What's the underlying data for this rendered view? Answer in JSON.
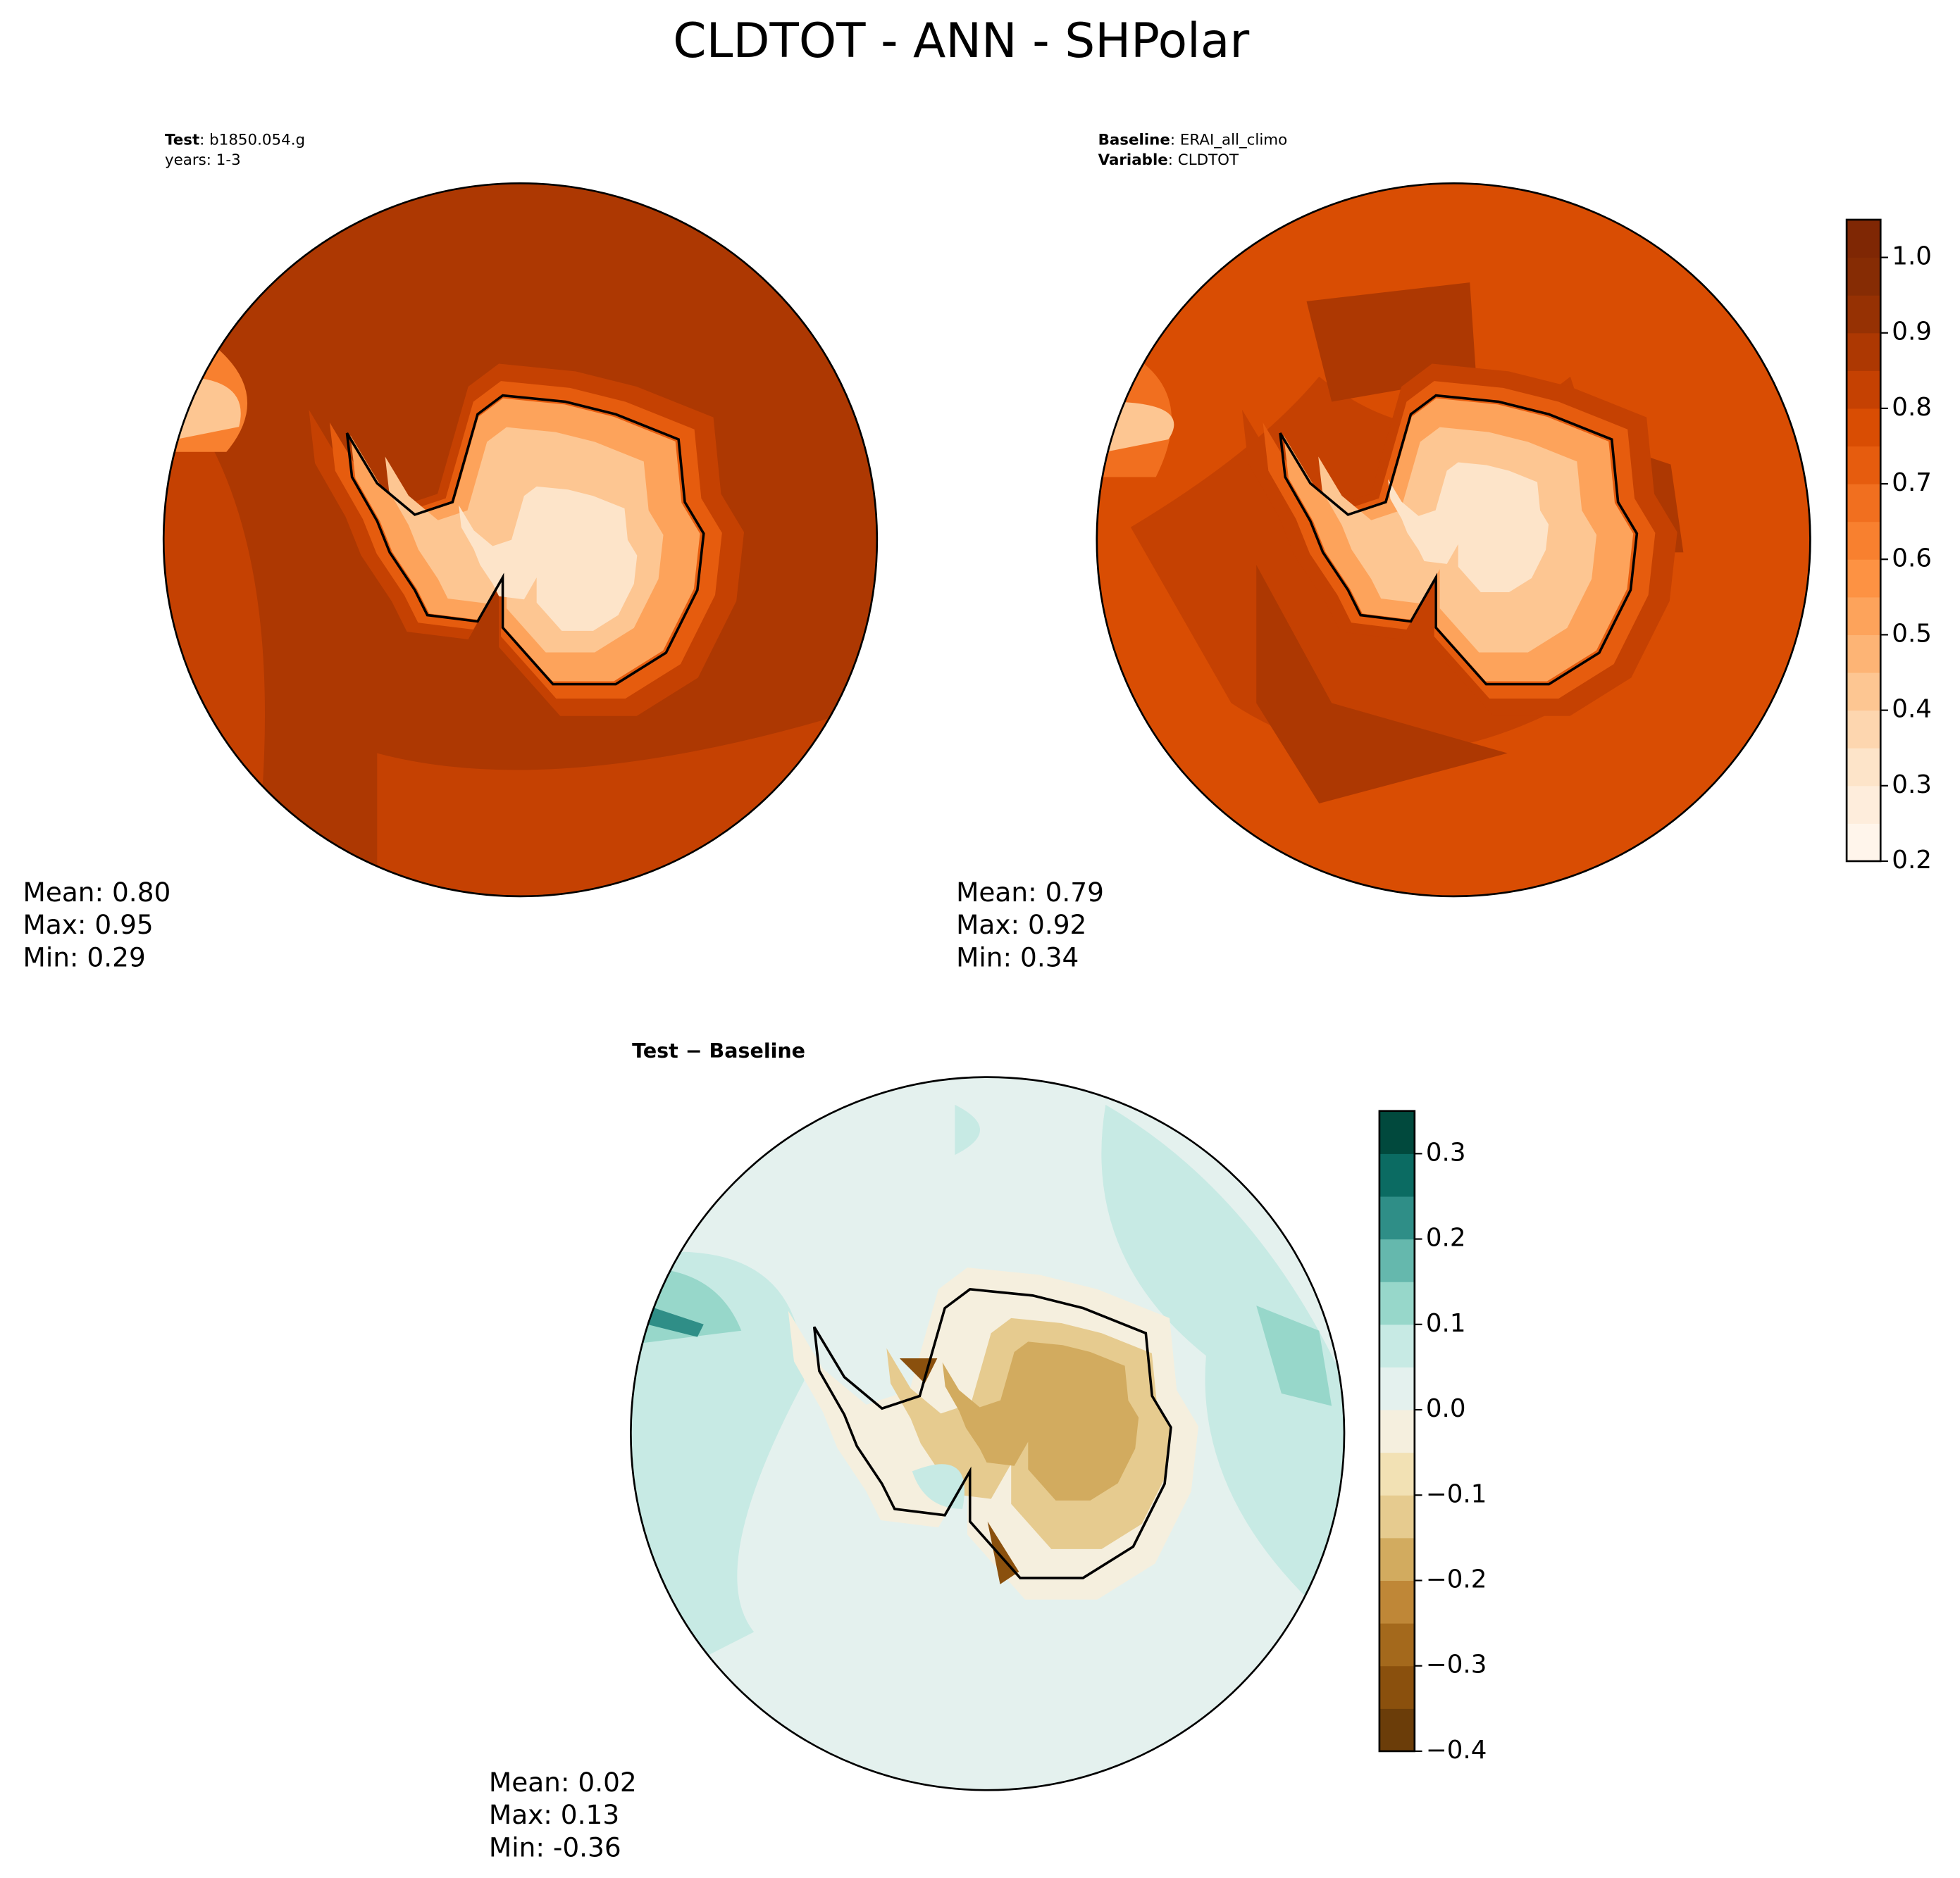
{
  "title": "CLDTOT - ANN - SHPolar",
  "test": {
    "label": "Test",
    "text": ": b1850.054.g",
    "years": "years: 1-3",
    "stats": [
      "Mean:  0.80",
      "Max:  0.95",
      "Min:  0.29"
    ]
  },
  "baseline": {
    "label": "Baseline",
    "text": ": ERAI_all_climo",
    "variable_label": "Variable",
    "variable": ": CLDTOT",
    "stats": [
      "Mean:  0.79",
      "Max:  0.92",
      "Min:  0.34"
    ]
  },
  "difference": {
    "title": "Test − Baseline",
    "stats": [
      "Mean:  0.02",
      "Max:  0.13",
      "Min: -0.36"
    ]
  },
  "colorbars": [
    {
      "lim": [
        0.2,
        1.05
      ],
      "ticks": [
        0.2,
        0.3,
        0.4,
        0.5,
        0.6,
        0.7,
        0.8,
        0.9,
        {
          "value": 1,
          "label": "1.0"
        }
      ],
      "colors": [
        "#fff5eb",
        "#feeddc",
        "#fde4c9",
        "#fdd6af",
        "#fdc692",
        "#fdb475",
        "#fda35b",
        "#fd9243",
        "#f8802f",
        "#f16f1f",
        "#e65c0e",
        "#d94d03",
        "#c54102",
        "#ad3802",
        "#963103",
        "#862c04",
        "#7f2704"
      ]
    },
    {
      "lim": [
        -0.4,
        0.35
      ],
      "ticks": [
        {
          "value": -0.4,
          "label": "−0.4"
        },
        {
          "value": -0.3,
          "label": "−0.3"
        },
        {
          "value": -0.2,
          "label": "−0.2"
        },
        {
          "value": -0.1,
          "label": "−0.1"
        },
        {
          "value": 0,
          "label": "0.0"
        },
        0.1,
        0.2,
        0.3
      ],
      "colors": [
        "#6b3d09",
        "#8a500d",
        "#a4691c",
        "#bf8737",
        "#d2ab5f",
        "#e6cb8f",
        "#f2e1b4",
        "#f5efde",
        "#e4f1ee",
        "#c7eae4",
        "#97d7ca",
        "#65b8ad",
        "#2f8e87",
        "#0b6b62",
        "#01493d"
      ]
    }
  ]
}
